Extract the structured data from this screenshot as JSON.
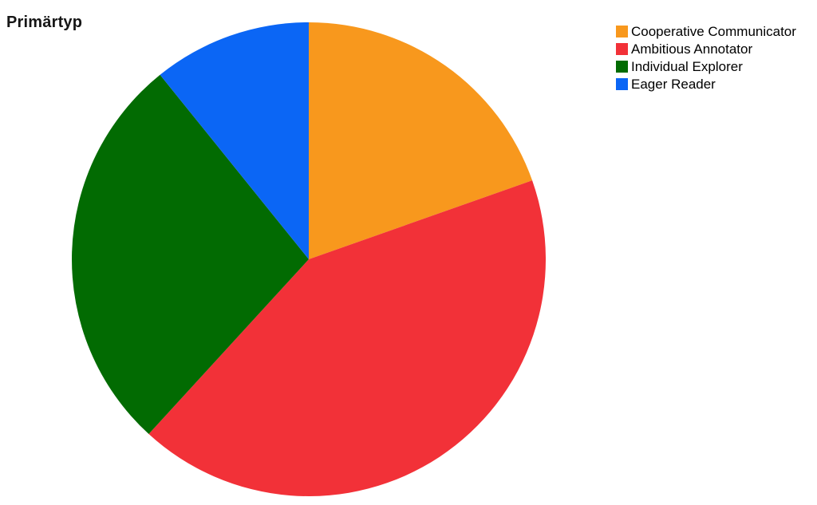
{
  "title": "Primärtyp",
  "chart_data": {
    "type": "pie",
    "title": "Primärtyp",
    "labels": [
      "Cooperative Communicator",
      "Ambitious Annotator",
      "Individual Explorer",
      "Eager Reader"
    ],
    "values": [
      19.6,
      42.2,
      27.4,
      10.8
    ],
    "unit": "percent_estimated_from_angles",
    "colors": [
      "#F8981D",
      "#F23138",
      "#026B02",
      "#0B66F5"
    ],
    "start_angle_deg": 0,
    "direction": "clockwise",
    "legend_position": "top-right",
    "data_labels_shown": false,
    "axes_shown": false
  }
}
